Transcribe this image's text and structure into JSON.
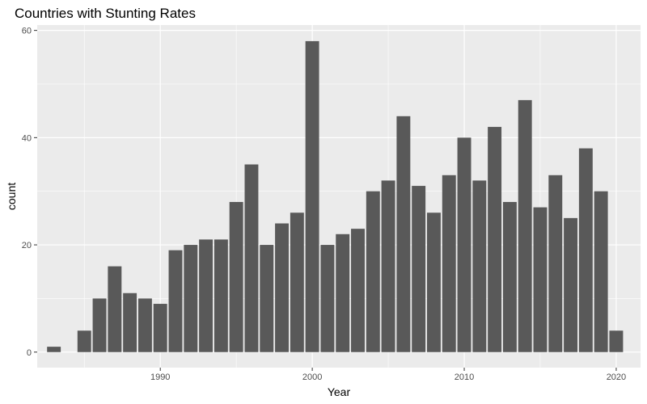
{
  "chart_data": {
    "type": "bar",
    "title": "Countries with Stunting Rates",
    "xlabel": "Year",
    "ylabel": "count",
    "x": [
      1983,
      1985,
      1986,
      1987,
      1988,
      1989,
      1990,
      1991,
      1992,
      1993,
      1994,
      1995,
      1996,
      1997,
      1998,
      1999,
      2000,
      2001,
      2002,
      2003,
      2004,
      2005,
      2006,
      2007,
      2008,
      2009,
      2010,
      2011,
      2012,
      2013,
      2014,
      2015,
      2016,
      2017,
      2018,
      2019,
      2020
    ],
    "values": [
      1,
      4,
      10,
      16,
      11,
      10,
      9,
      19,
      20,
      21,
      21,
      28,
      35,
      20,
      24,
      26,
      58,
      20,
      22,
      23,
      30,
      32,
      44,
      31,
      26,
      33,
      40,
      32,
      42,
      28,
      47,
      27,
      33,
      25,
      38,
      30,
      4
    ],
    "xlim": [
      1981.9,
      2021.6
    ],
    "ylim": [
      -2.9,
      61
    ],
    "x_ticks": [
      1990,
      2000,
      2010,
      2020
    ],
    "y_ticks": [
      0,
      20,
      40,
      60
    ],
    "bar_color": "#595959",
    "panel_color": "#ebebeb",
    "grid": true,
    "legend": "none"
  }
}
